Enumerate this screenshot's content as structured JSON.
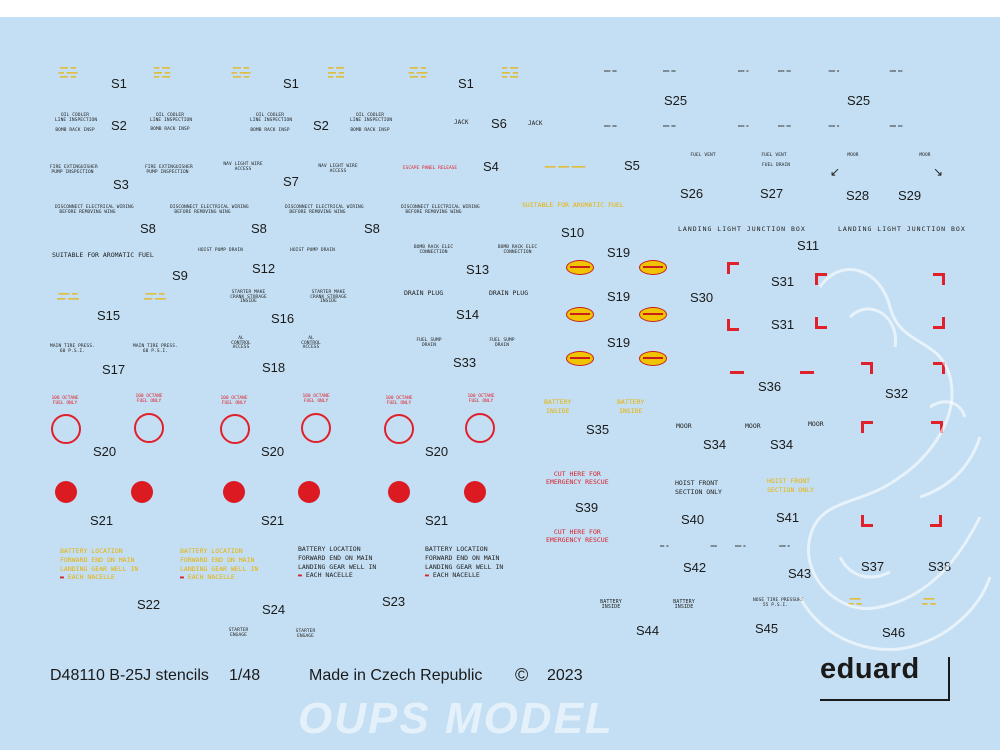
{
  "sheet": {
    "product_code": "D48110 B-25J stencils",
    "scale": "1/48",
    "origin": "Made in Czech Republic",
    "copyright_symbol": "©",
    "year": "2023",
    "brand": "eduard",
    "watermark": "OUPS MODEL",
    "background_color": "#c4dff3"
  },
  "labels": {
    "s1": "S1",
    "s2": "S2",
    "s3": "S3",
    "s4": "S4",
    "s5": "S5",
    "s6": "S6",
    "s7": "S7",
    "s8": "S8",
    "s9": "S9",
    "s10": "S10",
    "s11": "S11",
    "s12": "S12",
    "s13": "S13",
    "s14": "S14",
    "s15": "S15",
    "s16": "S16",
    "s17": "S17",
    "s18": "S18",
    "s19": "S19",
    "s20": "S20",
    "s21": "S21",
    "s22": "S22",
    "s23": "S23",
    "s24": "S24",
    "s25": "S25",
    "s26": "S26",
    "s27": "S27",
    "s28": "S28",
    "s29": "S29",
    "s30": "S30",
    "s31": "S31",
    "s32": "S32",
    "s33": "S33",
    "s34": "S34",
    "s35": "S35",
    "s36": "S36",
    "s37": "S37",
    "s38": "S38",
    "s39": "S39",
    "s40": "S40",
    "s41": "S41",
    "s42": "S42",
    "s43": "S43",
    "s44": "S44",
    "s45": "S45",
    "s46": "S46"
  },
  "stencils": {
    "oil_cooler": "OIL COOLER",
    "line_inspection": "LINE INSPECTION",
    "bomb_rack_insp": "BOMB RACK INSP",
    "jack": "JACK",
    "fire_ext_1": "FIRE EXTINGUISHER",
    "fire_ext_2": "PUMP INSPECTION",
    "nav_light_1": "NAV LIGHT WIRE",
    "nav_light_2": "ACCESS",
    "escape_panel": "ESCAPE PANEL RELEASE",
    "disconnect_1": "DISCONNECT ELECTRICAL WIRING",
    "disconnect_2": "BEFORE REMOVING WING",
    "aromatic_fuel": "SUITABLE FOR AROMATIC FUEL",
    "hoist_pump": "HOIST PUMP DRAIN",
    "bomb_rack_elec_1": "BOMB RACK ELEC",
    "bomb_rack_elec_2": "CONNECTION",
    "starter_1": "STARTER MAKE",
    "starter_2": "CRANK STORAGE",
    "starter_3": "INSIDE",
    "drain_plug": "DRAIN PLUG",
    "main_tire_1": "MAIN TIRE PRESS.",
    "main_tire_2": "60 P.S.I.",
    "al_control_1": "AL",
    "al_control_2": "CONTROL",
    "al_control_3": "ACCESS",
    "fuel_sump_1": "FUEL SUMP",
    "fuel_sump_2": "DRAIN",
    "octane_1": "100 OCTANE",
    "octane_2": "FUEL ONLY",
    "battery_loc_1": "BATTERY LOCATION",
    "battery_loc_2": "FORWARD END ON MAIN",
    "battery_loc_3": "LANDING GEAR WELL IN",
    "battery_loc_4": "EACH NACELLE",
    "starter_engage_1": "STARTER",
    "starter_engage_2": "ENGAGE",
    "fuel_vent": "FUEL VENT",
    "fuel_drain": "FUEL DRAIN",
    "moor": "MOOR",
    "landing_light": "LANDING LIGHT JUNCTION BOX",
    "battery_inside_1": "BATTERY",
    "battery_inside_2": "INSIDE",
    "cut_here_1": "CUT HERE FOR",
    "cut_here_2": "EMERGENCY RESCUE",
    "hoist_front_1": "HOIST FRONT",
    "hoist_front_2": "SECTION ONLY",
    "nose_tire_1": "NOSE TIRE PRESSURE",
    "nose_tire_2": "55 P.S.I."
  }
}
